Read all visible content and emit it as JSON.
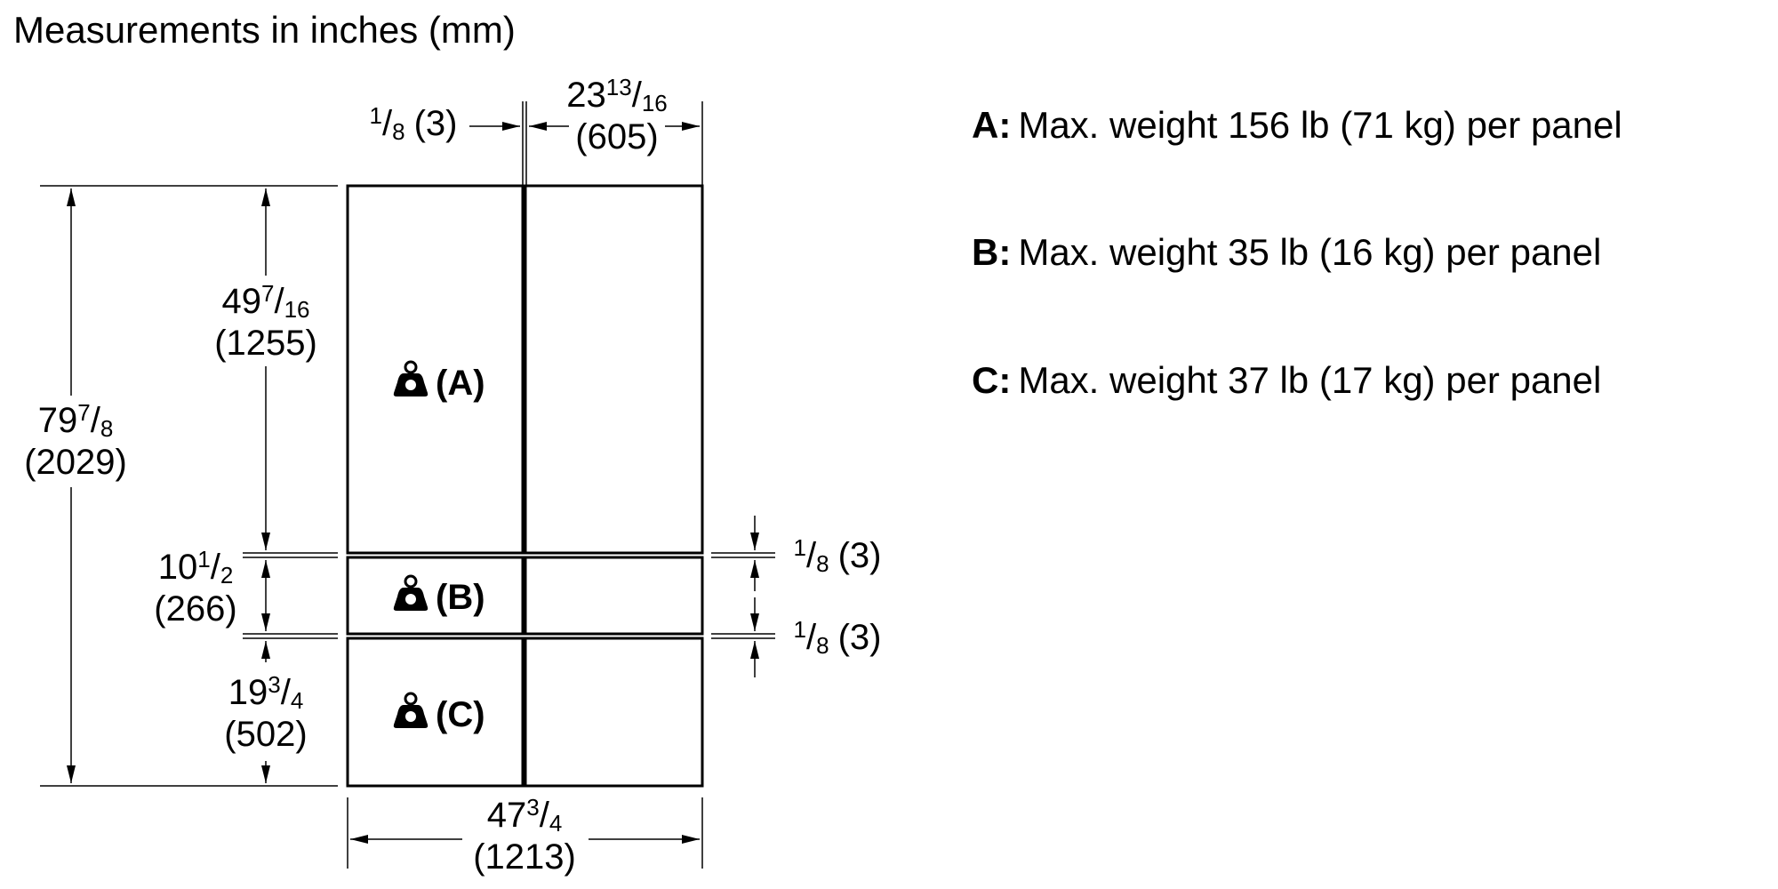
{
  "title": "Measurements in inches (mm)",
  "panels": [
    {
      "label": "(A)",
      "key": "A:",
      "text": "Max. weight 156 lb (71 kg) per panel"
    },
    {
      "label": "(B)",
      "key": "B:",
      "text": "Max. weight 35 lb (16 kg) per panel"
    },
    {
      "label": "(C)",
      "key": "C:",
      "text": "Max. weight 37 lb (17 kg) per panel"
    }
  ],
  "dimensions": {
    "top_gap": {
      "num": "1",
      "slash": "/",
      "den": "8",
      "mm": "(3)"
    },
    "top_width": {
      "whole": "23",
      "num": "13",
      "slash": "/",
      "den": "16",
      "mm": "(605)"
    },
    "total_height": {
      "whole": "79",
      "num": "7",
      "slash": "/",
      "den": "8",
      "mm": "(2029)"
    },
    "height_a": {
      "whole": "49",
      "num": "7",
      "slash": "/",
      "den": "16",
      "mm": "(1255)"
    },
    "height_b": {
      "whole": "10",
      "num": "1",
      "slash": "/",
      "den": "2",
      "mm": "(266)"
    },
    "height_c": {
      "whole": "19",
      "num": "3",
      "slash": "/",
      "den": "4",
      "mm": "(502)"
    },
    "gap_ab": {
      "num": "1",
      "slash": "/",
      "den": "8",
      "mm": "(3)"
    },
    "gap_bc": {
      "num": "1",
      "slash": "/",
      "den": "8",
      "mm": "(3)"
    },
    "total_width": {
      "whole": "47",
      "num": "3",
      "slash": "/",
      "den": "4",
      "mm": "(1213)"
    }
  }
}
